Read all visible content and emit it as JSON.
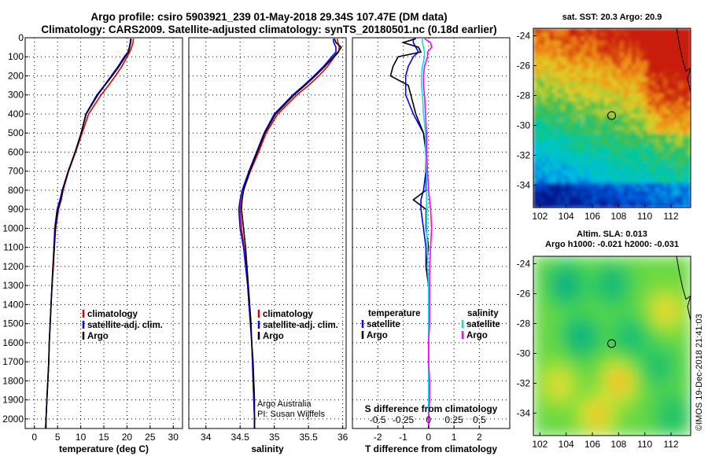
{
  "figure": {
    "title_line1": "Argo profile: csiro 5903921_239 01-May-2018 29.34S 107.47E (DM data)",
    "title_line2": "Climatology: CARS2009. Satellite-adjusted climatology: synTS_20180501.nc (0.18d earlier)",
    "credit": "Argo Australia",
    "pi": "PI: Susan Wijffels",
    "watermark": "©IMOS 19-Dec-2018 21:41:03",
    "colors": {
      "climatology": "#e00000",
      "satellite": "#0000ff",
      "argo": "#000000",
      "sal_satellite": "#00e5e5",
      "sal_argo": "#ff00ff"
    }
  },
  "chart_data": [
    {
      "type": "line",
      "name": "temperature-panel",
      "xlabel": "temperature (deg C)",
      "xlim": [
        -2,
        32
      ],
      "xticks": [
        0,
        5,
        10,
        15,
        20,
        25,
        30
      ],
      "ylim": [
        2050,
        0
      ],
      "yticks": [
        0,
        100,
        200,
        300,
        400,
        500,
        600,
        700,
        800,
        900,
        1000,
        1100,
        1200,
        1300,
        1400,
        1500,
        1600,
        1700,
        1800,
        1900,
        2000
      ],
      "grid": true,
      "legend": [
        "climatology",
        "satellite-adj. clim.",
        "Argo"
      ],
      "depth": [
        5,
        25,
        50,
        75,
        100,
        150,
        200,
        250,
        300,
        400,
        500,
        600,
        700,
        800,
        850,
        900,
        1000,
        1100,
        1200,
        1300,
        1400,
        1500,
        1600,
        1700,
        1800,
        1900,
        2000,
        2050
      ],
      "series": [
        {
          "name": "climatology",
          "values": [
            21.4,
            21.3,
            21.0,
            20.6,
            20.0,
            18.9,
            17.5,
            16.0,
            14.4,
            11.7,
            10.3,
            8.9,
            7.4,
            6.2,
            5.8,
            5.2,
            4.6,
            4.3,
            4.1,
            3.8,
            3.6,
            3.4,
            3.2,
            3.1,
            2.9,
            2.7,
            2.5,
            2.4
          ]
        },
        {
          "name": "satellite-adj. clim.",
          "values": [
            20.8,
            20.7,
            20.5,
            20.2,
            19.4,
            18.1,
            16.6,
            15.1,
            13.5,
            11.1,
            10.1,
            8.8,
            7.3,
            6.0,
            5.5,
            4.9,
            4.4,
            4.2,
            4.0,
            3.8,
            3.6,
            3.4,
            3.2,
            3.1,
            2.9,
            2.7,
            2.5,
            2.4
          ]
        },
        {
          "name": "Argo",
          "values": [
            20.9,
            20.8,
            20.6,
            20.3,
            19.6,
            18.3,
            16.8,
            15.2,
            13.7,
            11.2,
            10.1,
            8.8,
            7.3,
            6.1,
            5.7,
            5.1,
            4.5,
            4.3,
            4.0,
            3.8,
            3.6,
            3.4,
            3.2,
            3.1,
            2.9,
            2.7,
            2.5,
            2.5
          ]
        }
      ]
    },
    {
      "type": "line",
      "name": "salinity-panel",
      "xlabel": "salinity",
      "xlim": [
        33.75,
        36.05
      ],
      "xticks": [
        34,
        34.5,
        35,
        35.5,
        36
      ],
      "xticklabels": [
        "34",
        "34.5",
        "35",
        "35.5",
        "36"
      ],
      "ylim": [
        2050,
        0
      ],
      "grid": true,
      "legend": [
        "climatology",
        "satellite-adj. clim.",
        "Argo"
      ],
      "depth": [
        5,
        25,
        50,
        75,
        100,
        150,
        200,
        250,
        300,
        400,
        500,
        600,
        700,
        800,
        850,
        900,
        1000,
        1100,
        1200,
        1300,
        1400,
        1500,
        1600,
        1700,
        1800,
        1900,
        2000,
        2050
      ],
      "series": [
        {
          "name": "climatology",
          "values": [
            35.92,
            35.93,
            35.95,
            35.94,
            35.88,
            35.78,
            35.65,
            35.5,
            35.33,
            35.05,
            34.88,
            34.77,
            34.65,
            34.55,
            34.52,
            34.5,
            34.52,
            34.56,
            34.59,
            34.61,
            34.63,
            34.65,
            34.67,
            34.68,
            34.69,
            34.7,
            34.71,
            34.71
          ]
        },
        {
          "name": "satellite-adj. clim.",
          "values": [
            35.86,
            35.87,
            35.9,
            35.9,
            35.84,
            35.72,
            35.58,
            35.43,
            35.27,
            35.0,
            34.85,
            34.74,
            34.63,
            34.53,
            34.5,
            34.48,
            34.5,
            34.55,
            34.58,
            34.61,
            34.63,
            34.65,
            34.67,
            34.68,
            34.69,
            34.7,
            34.71,
            34.71
          ]
        },
        {
          "name": "Argo",
          "values": [
            35.88,
            35.9,
            35.98,
            35.93,
            35.87,
            35.74,
            35.6,
            35.45,
            35.29,
            35.02,
            34.86,
            34.75,
            34.64,
            34.55,
            34.53,
            34.52,
            34.55,
            34.58,
            34.6,
            34.62,
            34.64,
            34.66,
            34.67,
            34.69,
            34.7,
            34.71,
            34.71,
            34.71
          ]
        }
      ]
    },
    {
      "type": "line",
      "name": "difference-panel",
      "xlabel": "T difference from climatology",
      "xlabel2": "S difference from climatology",
      "xlim": [
        -3,
        3.2
      ],
      "xticks": [
        -2,
        -1,
        0,
        1,
        2
      ],
      "xticks2": [
        -0.5,
        -0.25,
        0,
        0.25,
        0.5
      ],
      "xticklabels2": [
        "-0.5",
        "-0.25",
        "0",
        "0.25",
        "0.5"
      ],
      "ylim": [
        2050,
        0
      ],
      "grid": true,
      "legend_left_title": "temperature",
      "legend_right_title": "salinity",
      "legend": [
        "satellite",
        "Argo",
        "satellite",
        "Argo"
      ],
      "depth": [
        5,
        25,
        50,
        75,
        100,
        150,
        200,
        250,
        300,
        400,
        500,
        600,
        700,
        800,
        850,
        900,
        1000,
        1100,
        1200,
        1300,
        1400,
        1500,
        1600,
        1700,
        1800,
        1900,
        2000,
        2050
      ],
      "series": [
        {
          "name": "T satellite",
          "values": [
            -0.6,
            -0.6,
            -0.5,
            -0.4,
            -0.6,
            -0.8,
            -0.9,
            -0.9,
            -0.9,
            -0.6,
            -0.2,
            -0.1,
            -0.1,
            -0.2,
            -0.3,
            -0.3,
            -0.2,
            -0.1,
            -0.1,
            0,
            0,
            0,
            0,
            0,
            0,
            0,
            0,
            0
          ]
        },
        {
          "name": "T Argo",
          "values": [
            -0.5,
            -1.0,
            -0.4,
            -0.3,
            -1.2,
            -1.4,
            -1.5,
            -0.8,
            -0.7,
            -0.5,
            -0.2,
            -0.1,
            -0.1,
            -0.1,
            -0.6,
            -0.1,
            -0.1,
            0,
            -0.1,
            0,
            0,
            0,
            0,
            0,
            0,
            0,
            0,
            0
          ]
        },
        {
          "name": "S satellite",
          "values": [
            -0.06,
            -0.06,
            -0.05,
            -0.04,
            -0.04,
            -0.06,
            -0.07,
            -0.07,
            -0.06,
            -0.05,
            -0.03,
            -0.03,
            -0.02,
            -0.02,
            -0.02,
            -0.02,
            -0.02,
            -0.01,
            -0.01,
            0,
            0,
            0,
            0,
            0,
            0,
            0,
            0,
            0
          ]
        },
        {
          "name": "S Argo",
          "values": [
            -0.04,
            0.02,
            0.03,
            -0.01,
            -0.01,
            -0.04,
            -0.05,
            -0.05,
            -0.04,
            -0.03,
            -0.02,
            -0.02,
            -0.01,
            0,
            0.01,
            0.02,
            0.03,
            0.02,
            0.01,
            0.01,
            0.01,
            0.01,
            0,
            0,
            0.01,
            0.01,
            0,
            0
          ]
        }
      ]
    },
    {
      "type": "heatmap",
      "name": "sst-map",
      "title": "sat. SST: 20.3 Argo: 20.9",
      "xlim": [
        101.5,
        113.5
      ],
      "ylim": [
        -35.5,
        -23.5
      ],
      "xticks": [
        102,
        104,
        106,
        108,
        110,
        112
      ],
      "yticks": [
        -24,
        -26,
        -28,
        -30,
        -32,
        -34
      ],
      "marker": {
        "lon": 107.47,
        "lat": -29.34
      }
    },
    {
      "type": "heatmap",
      "name": "sla-map",
      "title": "Altim. SLA: 0.013",
      "subtitle": "Argo h1000: -0.021 h2000: -0.031",
      "xlim": [
        101.5,
        113.5
      ],
      "ylim": [
        -35.5,
        -23.5
      ],
      "xticks": [
        102,
        104,
        106,
        108,
        110,
        112
      ],
      "yticks": [
        -24,
        -26,
        -28,
        -30,
        -32,
        -34
      ],
      "marker": {
        "lon": 107.47,
        "lat": -29.34
      }
    }
  ]
}
